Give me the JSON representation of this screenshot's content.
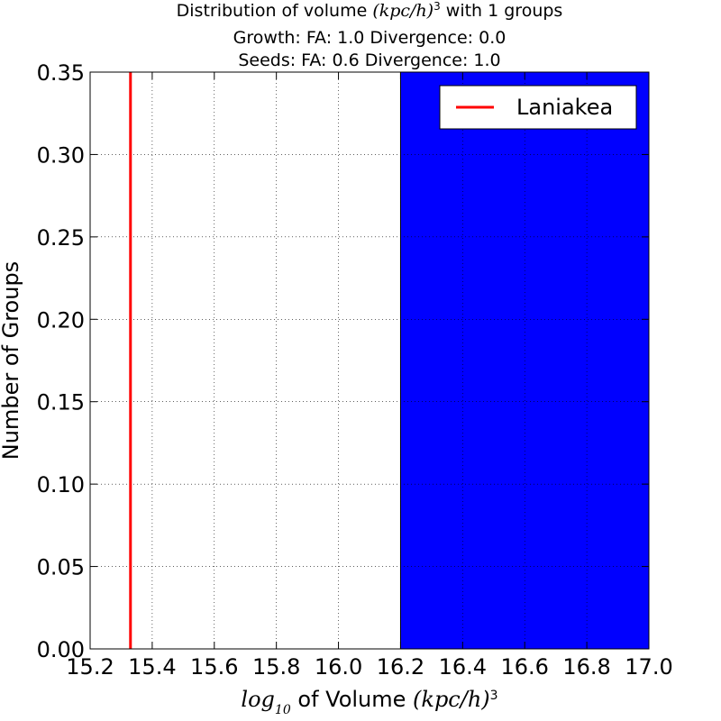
{
  "chart_data": {
    "type": "bar",
    "title": {
      "line1_prefix": "Distribution of volume ",
      "line1_math": "(kpc/h)",
      "line1_exp": "3",
      "line1_suffix": "  with 1 groups",
      "line2": "Growth: FA: 1.0 Divergence: 0.0",
      "line3": "Seeds: FA: 0.6 Divergence: 1.0"
    },
    "xlabel": {
      "log": "log",
      "sub": "10",
      "middle": " of Volume ",
      "math": "(kpc/h)",
      "exp": "3"
    },
    "ylabel": "Number of Groups",
    "xlim": [
      15.2,
      17.0
    ],
    "ylim": [
      0.0,
      0.35
    ],
    "xticks": [
      15.2,
      15.4,
      15.6,
      15.8,
      16.0,
      16.2,
      16.4,
      16.6,
      16.8,
      17.0
    ],
    "xtick_labels": [
      "15.2",
      "15.4",
      "15.6",
      "15.8",
      "16.0",
      "16.2",
      "16.4",
      "16.6",
      "16.8",
      "17.0"
    ],
    "yticks": [
      0.0,
      0.05,
      0.1,
      0.15,
      0.2,
      0.25,
      0.3,
      0.35
    ],
    "ytick_labels": [
      "0.00",
      "0.05",
      "0.10",
      "0.15",
      "0.20",
      "0.25",
      "0.30",
      "0.35"
    ],
    "grid": true,
    "bars": [
      {
        "x_start": 16.2,
        "x_end": 17.0,
        "value": 0.35,
        "color": "#0000ff"
      }
    ],
    "reference_lines": [
      {
        "name": "Laniakea",
        "x": 15.33,
        "color": "#ff0000"
      }
    ],
    "legend": {
      "placement": "top-right",
      "entries": [
        "Laniakea"
      ]
    }
  }
}
